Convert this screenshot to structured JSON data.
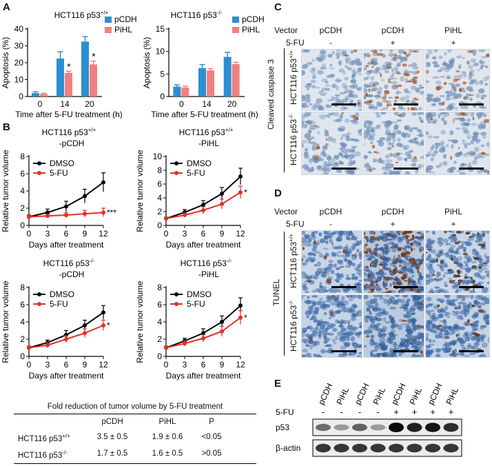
{
  "panel_labels": {
    "a": "A",
    "b": "B",
    "c": "C",
    "d": "D",
    "e": "E"
  },
  "colors": {
    "pcdh": "#2b8fd1",
    "pihl": "#f08080",
    "dmso": "#000000",
    "fu": "#e0302a"
  },
  "chart_data": [
    {
      "id": "A-left",
      "type": "bar",
      "title_base": "HCT116 p53",
      "title_sup": "+/+",
      "categories": [
        "0",
        "14",
        "20"
      ],
      "series": [
        {
          "name": "pCDH",
          "values": [
            2.0,
            22.5,
            32.5
          ],
          "errors": [
            0.8,
            4,
            3
          ]
        },
        {
          "name": "PiHL",
          "values": [
            1.5,
            14,
            19
          ],
          "errors": [
            0.4,
            1,
            2
          ]
        }
      ],
      "significance": [
        "",
        "*",
        "*"
      ],
      "ylabel": "Apoptosis (%)",
      "xlabel": "Time after 5-FU treatment (h)",
      "ylim": [
        0,
        40
      ],
      "yticks": [
        "0",
        "10",
        "20",
        "30",
        "40"
      ]
    },
    {
      "id": "A-right",
      "type": "bar",
      "title_base": "HCT116 p53",
      "title_sup": "-/-",
      "categories": [
        "0",
        "14",
        "20"
      ],
      "series": [
        {
          "name": "pCDH",
          "values": [
            2.2,
            6.3,
            8.8
          ],
          "errors": [
            0.4,
            0.8,
            1
          ]
        },
        {
          "name": "PiHL",
          "values": [
            2.0,
            5.8,
            7.2
          ],
          "errors": [
            0.3,
            0.4,
            0.4
          ]
        }
      ],
      "significance": [
        "",
        "",
        ""
      ],
      "ylabel": "Apoptosis (%)",
      "xlabel": "Time after 5-FU treatment (h)",
      "ylim": [
        0,
        15
      ],
      "yticks": [
        "0",
        "5",
        "10",
        "15"
      ]
    },
    {
      "id": "B1",
      "type": "line",
      "title_base": "HCT116 p53",
      "title_sup": "+/+",
      "title2": "-pCDH",
      "x": [
        0,
        3,
        6,
        9,
        12
      ],
      "series": [
        {
          "name": "DMSO",
          "values": [
            1,
            1.5,
            2.2,
            3.4,
            5.0
          ],
          "errors": [
            0.2,
            0.4,
            0.6,
            0.8,
            1.1
          ]
        },
        {
          "name": "5-FU",
          "values": [
            1,
            1.1,
            1.2,
            1.35,
            1.5
          ],
          "errors": [
            0.1,
            0.2,
            0.3,
            0.4,
            0.5
          ]
        }
      ],
      "significance": "***",
      "ylabel": "Relative tumor volume",
      "xlabel": "Days after treatment",
      "ylim": [
        0,
        8
      ],
      "yticks": [
        "0",
        "2",
        "4",
        "6",
        "8"
      ],
      "xticks": [
        "0",
        "3",
        "6",
        "9",
        "12"
      ]
    },
    {
      "id": "B2",
      "type": "line",
      "title_base": "HCT116 p53",
      "title_sup": "+/+",
      "title2": "-PiHL",
      "x": [
        0,
        3,
        6,
        9,
        12
      ],
      "series": [
        {
          "name": "DMSO",
          "values": [
            1,
            1.9,
            3.0,
            4.6,
            7.1
          ],
          "errors": [
            0.2,
            0.4,
            0.6,
            0.9,
            1.2
          ]
        },
        {
          "name": "5-FU",
          "values": [
            1,
            1.5,
            2.2,
            3.1,
            4.8
          ],
          "errors": [
            0.2,
            0.3,
            0.5,
            0.7,
            0.9
          ]
        }
      ],
      "significance": "*",
      "ylabel": "Relative tumor volume",
      "xlabel": "Days after treatment",
      "ylim": [
        0,
        10
      ],
      "yticks": [
        "0",
        "2",
        "4",
        "6",
        "8",
        "10"
      ],
      "xticks": [
        "0",
        "3",
        "6",
        "9",
        "12"
      ]
    },
    {
      "id": "B3",
      "type": "line",
      "title_base": "HCT116 p53",
      "title_sup": "-/-",
      "title2": "-pCDH",
      "x": [
        0,
        3,
        6,
        9,
        12
      ],
      "series": [
        {
          "name": "DMSO",
          "values": [
            1,
            1.6,
            2.5,
            3.6,
            5.1
          ],
          "errors": [
            0.2,
            0.3,
            0.5,
            0.6,
            0.8
          ]
        },
        {
          "name": "5-FU",
          "values": [
            1,
            1.3,
            2.0,
            2.7,
            3.6
          ],
          "errors": [
            0.2,
            0.3,
            0.4,
            0.5,
            0.6
          ]
        }
      ],
      "significance": "*",
      "ylabel": "Relative tumor volume",
      "xlabel": "Days after treatment",
      "ylim": [
        0,
        8
      ],
      "yticks": [
        "0",
        "2",
        "4",
        "6",
        "8"
      ],
      "xticks": [
        "0",
        "3",
        "6",
        "9",
        "12"
      ]
    },
    {
      "id": "B4",
      "type": "line",
      "title_base": "HCT116 p53",
      "title_sup": "-/-",
      "title2": "-PiHL",
      "x": [
        0,
        3,
        6,
        9,
        12
      ],
      "series": [
        {
          "name": "DMSO",
          "values": [
            1,
            1.8,
            2.7,
            4.0,
            5.9
          ],
          "errors": [
            0.2,
            0.3,
            0.5,
            0.7,
            0.9
          ]
        },
        {
          "name": "5-FU",
          "values": [
            1,
            1.5,
            2.1,
            2.9,
            4.5
          ],
          "errors": [
            0.2,
            0.3,
            0.4,
            0.6,
            0.8
          ]
        }
      ],
      "significance": "*",
      "ylabel": "Relative tumor volume",
      "xlabel": "Days after treatment",
      "ylim": [
        0,
        8
      ],
      "yticks": [
        "0",
        "2",
        "4",
        "6",
        "8"
      ],
      "xticks": [
        "0",
        "3",
        "6",
        "9",
        "12"
      ]
    },
    {
      "id": "fold-table",
      "type": "table",
      "title": "Fold reduction of tumor volume by 5-FU treatment",
      "columns": [
        "",
        "pCDH",
        "PiHL",
        "P"
      ],
      "rows": [
        {
          "line_base": "HCT116 p53",
          "line_sup": "+/+",
          "pcdh": "3.5 ± 0.5",
          "pihl": "1.9 ± 0.6",
          "p": "<0.05"
        },
        {
          "line_base": "HCT116 p53",
          "line_sup": "-/-",
          "pcdh": "1.7 ± 0.5",
          "pihl": "1.6 ± 0.5",
          "p": ">0.05"
        }
      ]
    }
  ],
  "panel_c": {
    "vector_label": "Vector",
    "fu_label": "5-FU",
    "columns": [
      {
        "vector": "pCDH",
        "fu": "-"
      },
      {
        "vector": "pCDH",
        "fu": "+"
      },
      {
        "vector": "PiHL",
        "fu": "+"
      }
    ],
    "stain_label": "Cleaved caspase 3",
    "rows": [
      {
        "base": "HCT116 p53",
        "sup": "+/+"
      },
      {
        "base": "HCT116 p53",
        "sup": "-/-"
      }
    ]
  },
  "panel_d": {
    "vector_label": "Vector",
    "fu_label": "5-FU",
    "columns": [
      {
        "vector": "pCDH",
        "fu": "-"
      },
      {
        "vector": "pCDH",
        "fu": "+"
      },
      {
        "vector": "PiHL",
        "fu": "+"
      }
    ],
    "stain_label": "TUNEL",
    "rows": [
      {
        "base": "HCT116 p53",
        "sup": "+/+"
      },
      {
        "base": "HCT116 p53",
        "sup": "-/-"
      }
    ]
  },
  "panel_e": {
    "lanes": [
      "pCDH",
      "PiHL",
      "pCDH",
      "PiHL",
      "pCDH",
      "PiHL",
      "pCDH",
      "PiHL"
    ],
    "fu_label": "5-FU",
    "fu": [
      "-",
      "-",
      "-",
      "-",
      "+",
      "+",
      "+",
      "+"
    ],
    "blots": [
      {
        "label": "p53",
        "intensity": [
          0.55,
          0.35,
          0.6,
          0.35,
          1.0,
          0.9,
          0.95,
          0.85
        ]
      },
      {
        "label": "β-actin",
        "intensity": [
          0.8,
          0.8,
          0.8,
          0.8,
          0.8,
          0.8,
          0.8,
          0.8
        ]
      }
    ]
  }
}
